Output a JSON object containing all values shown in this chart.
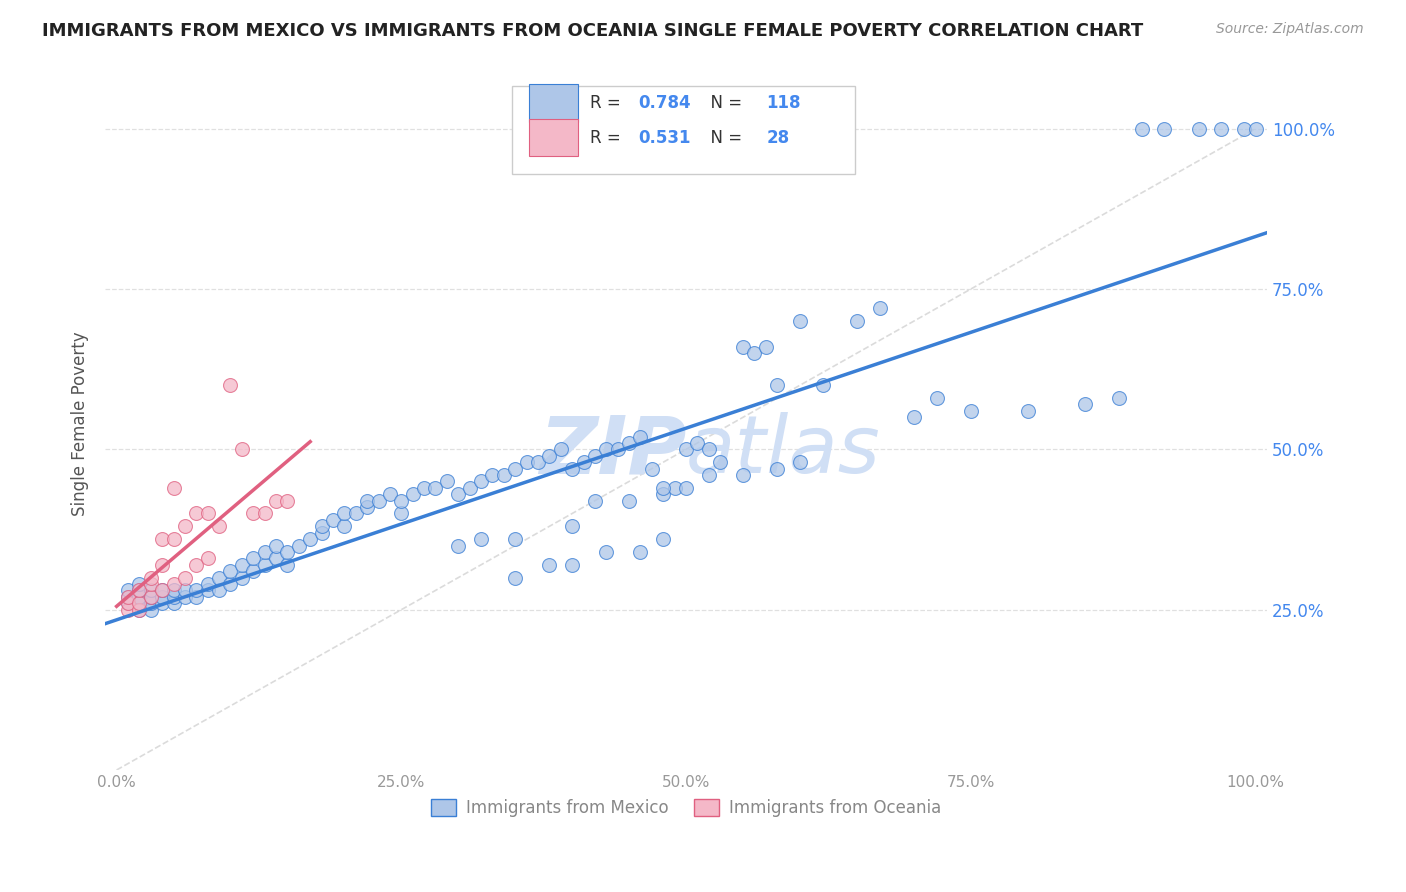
{
  "title": "IMMIGRANTS FROM MEXICO VS IMMIGRANTS FROM OCEANIA SINGLE FEMALE POVERTY CORRELATION CHART",
  "source": "Source: ZipAtlas.com",
  "ylabel": "Single Female Poverty",
  "legend_label_mexico": "Immigrants from Mexico",
  "legend_label_oceania": "Immigrants from Oceania",
  "mexico_R": "0.784",
  "mexico_N": "118",
  "oceania_R": "0.531",
  "oceania_N": "28",
  "mexico_color": "#aec6e8",
  "oceania_color": "#f4b8c8",
  "mexico_line_color": "#3a7fd5",
  "oceania_line_color": "#e06080",
  "diagonal_color": "#cccccc",
  "watermark_color": "#d0dff5",
  "background_color": "#ffffff",
  "grid_color": "#e0e0e0",
  "title_color": "#222222",
  "right_axis_color": "#4488ee",
  "tick_color": "#999999",
  "ytick_labels": [
    "25.0%",
    "50.0%",
    "75.0%",
    "100.0%"
  ],
  "ytick_values": [
    0.25,
    0.5,
    0.75,
    1.0
  ],
  "xtick_labels": [
    "0.0%",
    "25.0%",
    "50.0%",
    "75.0%",
    "100.0%"
  ],
  "xtick_values": [
    0.0,
    0.25,
    0.5,
    0.75,
    1.0
  ],
  "mexico_x": [
    0.01,
    0.01,
    0.01,
    0.02,
    0.02,
    0.02,
    0.02,
    0.02,
    0.03,
    0.03,
    0.03,
    0.03,
    0.04,
    0.04,
    0.04,
    0.05,
    0.05,
    0.05,
    0.06,
    0.06,
    0.07,
    0.07,
    0.08,
    0.08,
    0.09,
    0.09,
    0.1,
    0.1,
    0.11,
    0.11,
    0.12,
    0.12,
    0.13,
    0.13,
    0.14,
    0.14,
    0.15,
    0.15,
    0.16,
    0.17,
    0.18,
    0.18,
    0.19,
    0.2,
    0.2,
    0.21,
    0.22,
    0.22,
    0.23,
    0.24,
    0.25,
    0.25,
    0.26,
    0.27,
    0.28,
    0.29,
    0.3,
    0.31,
    0.32,
    0.33,
    0.34,
    0.35,
    0.36,
    0.37,
    0.38,
    0.39,
    0.4,
    0.41,
    0.42,
    0.43,
    0.44,
    0.45,
    0.46,
    0.47,
    0.48,
    0.49,
    0.5,
    0.51,
    0.52,
    0.53,
    0.55,
    0.56,
    0.57,
    0.58,
    0.6,
    0.62,
    0.65,
    0.67,
    0.7,
    0.72,
    0.75,
    0.8,
    0.85,
    0.88,
    0.9,
    0.92,
    0.95,
    0.97,
    0.99,
    1.0,
    0.3,
    0.32,
    0.35,
    0.4,
    0.42,
    0.45,
    0.48,
    0.5,
    0.52,
    0.55,
    0.58,
    0.6,
    0.35,
    0.38,
    0.4,
    0.43,
    0.46,
    0.48
  ],
  "mexico_y": [
    0.26,
    0.27,
    0.28,
    0.25,
    0.26,
    0.27,
    0.28,
    0.29,
    0.25,
    0.26,
    0.27,
    0.28,
    0.26,
    0.27,
    0.28,
    0.26,
    0.27,
    0.28,
    0.27,
    0.28,
    0.27,
    0.28,
    0.28,
    0.29,
    0.28,
    0.3,
    0.29,
    0.31,
    0.3,
    0.32,
    0.31,
    0.33,
    0.32,
    0.34,
    0.33,
    0.35,
    0.32,
    0.34,
    0.35,
    0.36,
    0.37,
    0.38,
    0.39,
    0.38,
    0.4,
    0.4,
    0.41,
    0.42,
    0.42,
    0.43,
    0.4,
    0.42,
    0.43,
    0.44,
    0.44,
    0.45,
    0.43,
    0.44,
    0.45,
    0.46,
    0.46,
    0.47,
    0.48,
    0.48,
    0.49,
    0.5,
    0.47,
    0.48,
    0.49,
    0.5,
    0.5,
    0.51,
    0.52,
    0.47,
    0.43,
    0.44,
    0.5,
    0.51,
    0.5,
    0.48,
    0.66,
    0.65,
    0.66,
    0.6,
    0.7,
    0.6,
    0.7,
    0.72,
    0.55,
    0.58,
    0.56,
    0.56,
    0.57,
    0.58,
    1.0,
    1.0,
    1.0,
    1.0,
    1.0,
    1.0,
    0.35,
    0.36,
    0.36,
    0.38,
    0.42,
    0.42,
    0.44,
    0.44,
    0.46,
    0.46,
    0.47,
    0.48,
    0.3,
    0.32,
    0.32,
    0.34,
    0.34,
    0.36
  ],
  "oceania_x": [
    0.01,
    0.01,
    0.01,
    0.02,
    0.02,
    0.02,
    0.03,
    0.03,
    0.03,
    0.04,
    0.04,
    0.04,
    0.05,
    0.05,
    0.05,
    0.06,
    0.06,
    0.07,
    0.07,
    0.08,
    0.08,
    0.09,
    0.1,
    0.11,
    0.12,
    0.13,
    0.14,
    0.15
  ],
  "oceania_y": [
    0.25,
    0.26,
    0.27,
    0.25,
    0.26,
    0.28,
    0.27,
    0.29,
    0.3,
    0.28,
    0.32,
    0.36,
    0.29,
    0.36,
    0.44,
    0.3,
    0.38,
    0.32,
    0.4,
    0.33,
    0.4,
    0.38,
    0.6,
    0.5,
    0.4,
    0.4,
    0.42,
    0.42
  ]
}
